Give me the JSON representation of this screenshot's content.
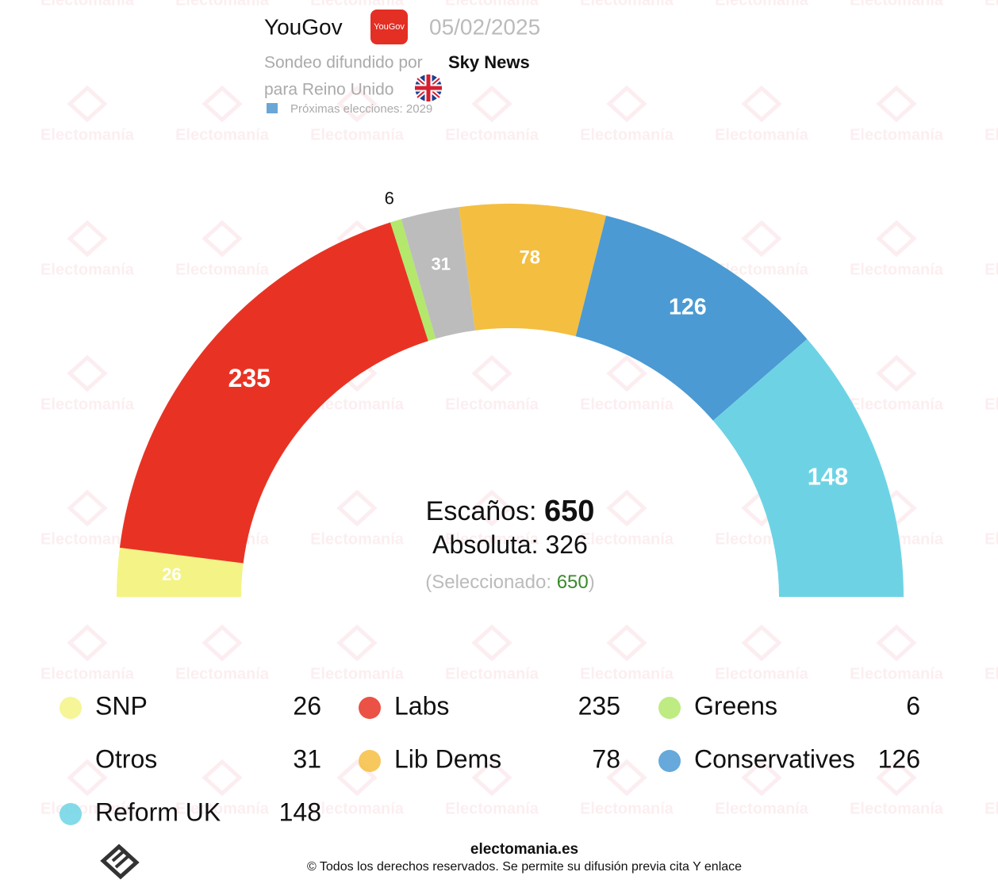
{
  "chart_data": {
    "type": "hemicycle",
    "pollster": "YouGov",
    "logo_text": "YouGov",
    "date": "05/02/2025",
    "source_prefix": "Sondeo difundido por",
    "source": "Sky News",
    "region": "para Reino Unido",
    "next_election": "Próximas elecciones: 2029",
    "categories": [
      "SNP",
      "Labs",
      "Greens",
      "Otros",
      "Lib Dems",
      "Conservatives",
      "Reform UK"
    ],
    "values": [
      26,
      235,
      6,
      31,
      78,
      126,
      148
    ],
    "colors": [
      "#f4f386",
      "#e83324",
      "#b3e86c",
      "#bcbcbc",
      "#f4be41",
      "#4b9ad3",
      "#6dd3e4"
    ],
    "seats_label": "Escaños:",
    "total": 650,
    "majority_label": "Absoluta:",
    "majority": 326,
    "selected_label": "(Seleccionado:",
    "selected": 650,
    "selected_close": ")",
    "watermark": "Electomanía",
    "footer_site": "electomania.es",
    "footer_note": "© Todos los derechos reservados. Se permite su difusión previa cita Y enlace"
  }
}
